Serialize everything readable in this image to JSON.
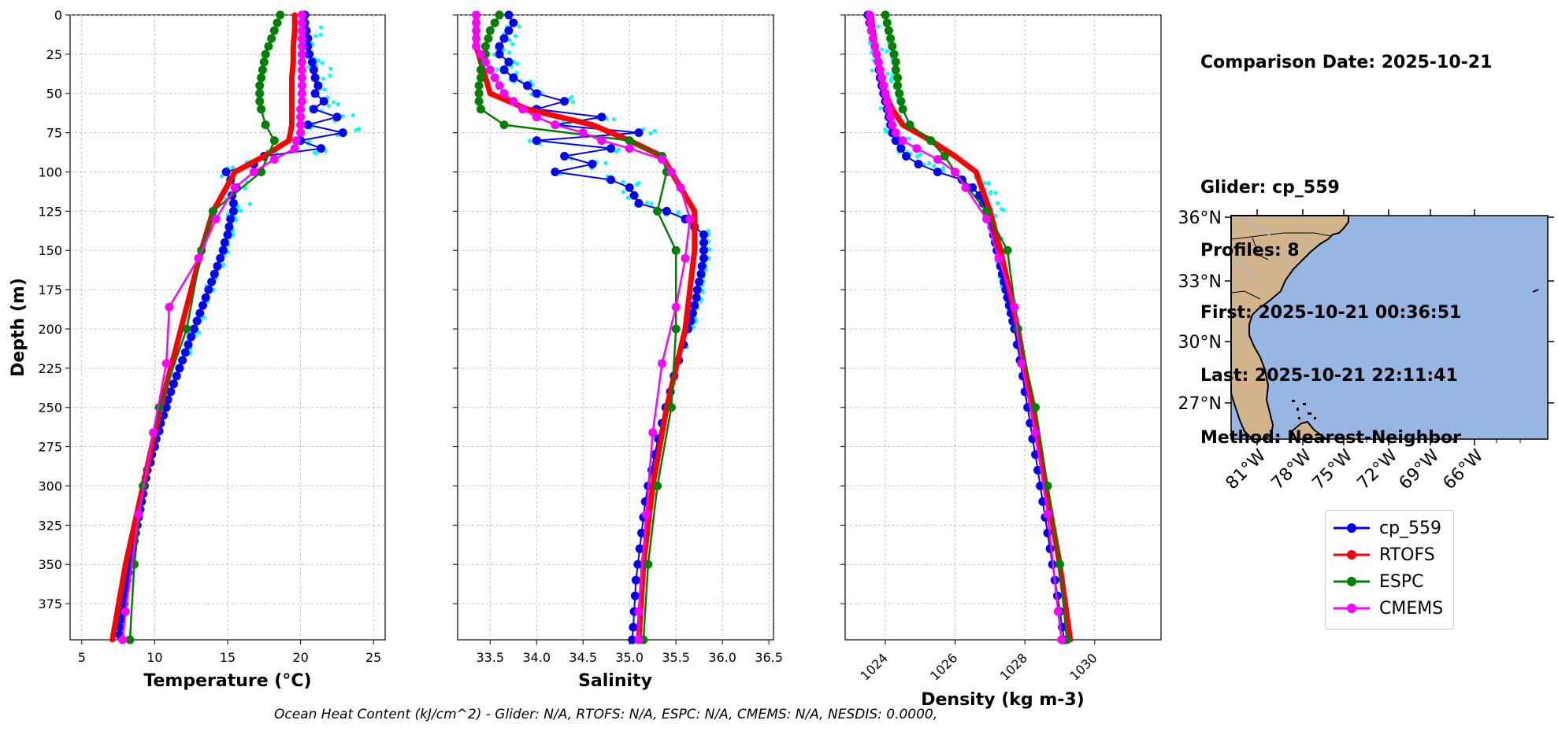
{
  "info": {
    "comparison_date": "Comparison Date: 2025-10-21",
    "glider": "Glider: cp_559",
    "profiles": "Profiles: 8",
    "first": "First: 2025-10-21 00:36:51",
    "last": "Last: 2025-10-21 22:11:41",
    "method": "Method: Nearest-Neighbor"
  },
  "footer_text": "Ocean Heat Content (kJ/cm^2) - Glider: N/A,  RTOFS: N/A,  ESPC: N/A,  CMEMS: N/A,  NESDIS: 0.0000,",
  "colors": {
    "glider": "#0000ff",
    "rtofs": "#ff0000",
    "espc": "#008000",
    "cmems": "#ff00ff",
    "raw": "#00ffff",
    "ocean": "#97b6e1",
    "land": "#d2b48c"
  },
  "legend": [
    {
      "label": "cp_559",
      "color": "#0000ff"
    },
    {
      "label": "RTOFS",
      "color": "#ff0000"
    },
    {
      "label": "ESPC",
      "color": "#008000"
    },
    {
      "label": "CMEMS",
      "color": "#ff00ff"
    }
  ],
  "chart_data": [
    {
      "type": "line",
      "panel": "temperature",
      "xlabel": "Temperature (°C)",
      "ylabel": "Depth (m)",
      "xlim": [
        4.2,
        25.8
      ],
      "ylim": [
        398,
        0
      ],
      "xticks": [
        5,
        10,
        15,
        20,
        25
      ],
      "yticks": [
        0,
        25,
        50,
        75,
        100,
        125,
        150,
        175,
        200,
        225,
        250,
        275,
        300,
        325,
        350,
        375
      ],
      "grid": true,
      "series": [
        {
          "name": "cp_559",
          "depth": [
            0,
            5,
            10,
            15,
            20,
            25,
            30,
            35,
            40,
            45,
            50,
            55,
            60,
            65,
            70,
            75,
            80,
            85,
            90,
            95,
            100,
            105,
            110,
            115,
            120,
            125,
            130,
            135,
            140,
            145,
            150,
            155,
            160,
            165,
            170,
            175,
            180,
            185,
            190,
            195,
            200,
            205,
            210,
            215,
            220,
            225,
            230,
            235,
            240,
            245,
            250,
            255,
            260,
            265,
            270,
            275,
            280,
            285,
            290,
            295,
            300,
            305,
            310,
            315,
            320,
            325,
            330,
            335,
            340,
            345,
            350,
            355,
            360,
            365,
            370,
            375,
            380,
            385,
            390,
            395
          ],
          "values": [
            20.3,
            20.3,
            20.4,
            20.5,
            20.5,
            20.6,
            20.8,
            20.9,
            21.0,
            21.2,
            21.0,
            21.6,
            20.9,
            22.5,
            20.5,
            22.9,
            20.0,
            21.4,
            17.5,
            16.8,
            14.9,
            15.2,
            15.6,
            15.3,
            15.4,
            15.4,
            15.2,
            15.1,
            15.0,
            14.8,
            14.7,
            14.5,
            14.3,
            14.1,
            13.9,
            13.7,
            13.5,
            13.3,
            13.1,
            12.9,
            12.7,
            12.5,
            12.3,
            12.1,
            11.9,
            11.7,
            11.5,
            11.3,
            11.1,
            10.9,
            10.8,
            10.6,
            10.4,
            10.3,
            10.1,
            10.0,
            9.8,
            9.7,
            9.5,
            9.4,
            9.3,
            9.2,
            9.1,
            9.0,
            8.9,
            8.8,
            8.7,
            8.6,
            8.5,
            8.4,
            8.3,
            8.2,
            8.1,
            8.0,
            7.9,
            7.9,
            7.8,
            7.7,
            7.6,
            7.6
          ]
        },
        {
          "name": "RTOFS",
          "depth": [
            0,
            10,
            20,
            30,
            40,
            50,
            60,
            70,
            80,
            90,
            100,
            125,
            150,
            200,
            250,
            300,
            350,
            398
          ],
          "values": [
            19.6,
            19.6,
            19.5,
            19.5,
            19.4,
            19.4,
            19.4,
            19.4,
            19.2,
            17.5,
            15.5,
            14.0,
            13.2,
            11.8,
            10.4,
            9.2,
            8.0,
            7.1
          ]
        },
        {
          "name": "ESPC",
          "depth": [
            0,
            5,
            10,
            15,
            20,
            25,
            30,
            35,
            40,
            45,
            50,
            55,
            60,
            70,
            80,
            100,
            125,
            150,
            200,
            250,
            300,
            350,
            398
          ],
          "values": [
            18.6,
            18.4,
            18.2,
            18.0,
            17.8,
            17.6,
            17.5,
            17.4,
            17.3,
            17.2,
            17.2,
            17.2,
            17.3,
            17.6,
            18.2,
            17.3,
            14.0,
            13.2,
            12.2,
            10.3,
            9.2,
            8.6,
            8.3
          ]
        },
        {
          "name": "CMEMS",
          "depth": [
            0,
            5,
            10,
            15,
            20,
            25,
            30,
            35,
            40,
            45,
            50,
            55,
            60,
            65,
            70,
            75,
            80,
            85,
            92,
            100,
            110,
            130,
            155,
            186,
            222,
            266,
            318,
            380,
            398
          ],
          "values": [
            20.1,
            20.1,
            20.1,
            20.1,
            20.1,
            20.1,
            20.1,
            20.1,
            20.1,
            20.1,
            20.1,
            20.1,
            20.0,
            20.0,
            20.0,
            20.0,
            19.7,
            19.6,
            18.2,
            16.8,
            15.5,
            14.2,
            13.0,
            11.0,
            10.8,
            9.9,
            8.9,
            8.0,
            7.8
          ]
        }
      ]
    },
    {
      "type": "line",
      "panel": "salinity",
      "xlabel": "Salinity",
      "xlim": [
        33.15,
        36.55
      ],
      "ylim": [
        398,
        0
      ],
      "xticks": [
        33.5,
        34.0,
        34.5,
        35.0,
        35.5,
        36.0,
        36.5
      ],
      "grid": true,
      "series": [
        {
          "name": "cp_559",
          "depth": [
            0,
            5,
            10,
            15,
            20,
            25,
            30,
            35,
            40,
            45,
            50,
            55,
            60,
            65,
            70,
            75,
            80,
            85,
            90,
            95,
            100,
            105,
            110,
            115,
            120,
            125,
            130,
            135,
            140,
            145,
            150,
            155,
            160,
            165,
            170,
            175,
            180,
            185,
            190,
            195,
            200,
            210,
            220,
            230,
            240,
            250,
            260,
            270,
            280,
            290,
            300,
            310,
            320,
            330,
            340,
            350,
            360,
            370,
            380,
            390,
            398
          ],
          "values": [
            33.7,
            33.75,
            33.7,
            33.65,
            33.6,
            33.6,
            33.7,
            33.65,
            33.75,
            33.9,
            34.0,
            34.3,
            34.0,
            34.7,
            34.2,
            35.1,
            34.0,
            34.8,
            34.3,
            34.6,
            34.2,
            34.8,
            35.0,
            35.05,
            35.1,
            35.4,
            35.6,
            35.7,
            35.8,
            35.8,
            35.8,
            35.8,
            35.78,
            35.77,
            35.75,
            35.73,
            35.72,
            35.7,
            35.68,
            35.66,
            35.63,
            35.58,
            35.53,
            35.48,
            35.44,
            35.39,
            35.35,
            35.31,
            35.27,
            35.24,
            35.2,
            35.17,
            35.15,
            35.13,
            35.11,
            35.09,
            35.07,
            35.06,
            35.05,
            35.04,
            35.03
          ]
        },
        {
          "name": "RTOFS",
          "depth": [
            0,
            10,
            20,
            30,
            40,
            50,
            60,
            70,
            80,
            90,
            100,
            125,
            150,
            200,
            250,
            300,
            350,
            398
          ],
          "values": [
            33.35,
            33.35,
            33.35,
            33.4,
            33.45,
            33.5,
            33.9,
            34.6,
            35.0,
            35.35,
            35.45,
            35.7,
            35.7,
            35.6,
            35.4,
            35.25,
            35.15,
            35.1
          ]
        },
        {
          "name": "ESPC",
          "depth": [
            0,
            5,
            10,
            15,
            20,
            25,
            30,
            35,
            40,
            45,
            50,
            55,
            60,
            70,
            80,
            90,
            100,
            125,
            150,
            200,
            250,
            300,
            350,
            398
          ],
          "values": [
            33.6,
            33.55,
            33.5,
            33.48,
            33.45,
            33.45,
            33.42,
            33.4,
            33.4,
            33.38,
            33.38,
            33.38,
            33.4,
            33.65,
            35.0,
            35.35,
            35.4,
            35.3,
            35.5,
            35.5,
            35.45,
            35.3,
            35.2,
            35.15
          ]
        },
        {
          "name": "CMEMS",
          "depth": [
            0,
            5,
            10,
            15,
            20,
            25,
            30,
            35,
            40,
            45,
            50,
            55,
            60,
            65,
            70,
            75,
            80,
            85,
            92,
            100,
            110,
            130,
            155,
            186,
            222,
            266,
            318,
            380,
            398
          ],
          "values": [
            33.35,
            33.35,
            33.35,
            33.35,
            33.35,
            33.4,
            33.45,
            33.5,
            33.55,
            33.6,
            33.65,
            33.75,
            33.85,
            34.0,
            34.2,
            34.5,
            34.7,
            35.0,
            35.35,
            35.45,
            35.55,
            35.65,
            35.6,
            35.5,
            35.35,
            35.25,
            35.18,
            35.1,
            35.1
          ]
        }
      ]
    },
    {
      "type": "line",
      "panel": "density",
      "xlabel": "Density (kg m-3)",
      "xlim": [
        1022.85,
        1031.9
      ],
      "ylim": [
        398,
        0
      ],
      "xticks": [
        1024,
        1026,
        1028,
        1030
      ],
      "grid": true,
      "series": [
        {
          "name": "cp_559",
          "depth": [
            0,
            5,
            10,
            15,
            20,
            25,
            30,
            35,
            40,
            45,
            50,
            55,
            60,
            65,
            70,
            75,
            80,
            85,
            90,
            95,
            100,
            105,
            110,
            115,
            120,
            125,
            130,
            135,
            140,
            145,
            150,
            155,
            160,
            165,
            170,
            175,
            180,
            185,
            190,
            195,
            200,
            210,
            220,
            230,
            240,
            250,
            260,
            270,
            280,
            290,
            300,
            310,
            320,
            330,
            340,
            350,
            360,
            370,
            380,
            390,
            398
          ],
          "values": [
            1023.5,
            1023.55,
            1023.6,
            1023.65,
            1023.7,
            1023.75,
            1023.8,
            1023.82,
            1023.85,
            1023.9,
            1023.95,
            1024.0,
            1024.05,
            1024.1,
            1024.15,
            1024.2,
            1024.3,
            1024.45,
            1024.6,
            1024.95,
            1025.5,
            1026.2,
            1026.5,
            1026.7,
            1026.8,
            1026.9,
            1027.0,
            1027.05,
            1027.1,
            1027.15,
            1027.2,
            1027.25,
            1027.3,
            1027.35,
            1027.4,
            1027.45,
            1027.5,
            1027.55,
            1027.6,
            1027.65,
            1027.7,
            1027.78,
            1027.86,
            1027.94,
            1028.0,
            1028.08,
            1028.15,
            1028.22,
            1028.3,
            1028.37,
            1028.44,
            1028.51,
            1028.58,
            1028.65,
            1028.72,
            1028.79,
            1028.86,
            1028.93,
            1029.0,
            1029.07,
            1029.12
          ]
        },
        {
          "name": "RTOFS",
          "depth": [
            0,
            10,
            20,
            30,
            40,
            50,
            60,
            70,
            80,
            90,
            100,
            125,
            150,
            200,
            250,
            300,
            350,
            398
          ],
          "values": [
            1023.6,
            1023.65,
            1023.7,
            1023.8,
            1023.9,
            1024.0,
            1024.2,
            1024.5,
            1025.3,
            1026.0,
            1026.6,
            1027.0,
            1027.3,
            1027.8,
            1028.2,
            1028.6,
            1029.0,
            1029.3
          ]
        },
        {
          "name": "ESPC",
          "depth": [
            0,
            5,
            10,
            15,
            20,
            25,
            30,
            35,
            40,
            45,
            50,
            55,
            60,
            70,
            80,
            90,
            100,
            125,
            150,
            200,
            250,
            300,
            350,
            398
          ],
          "values": [
            1024.0,
            1024.05,
            1024.1,
            1024.15,
            1024.2,
            1024.25,
            1024.3,
            1024.3,
            1024.35,
            1024.35,
            1024.4,
            1024.45,
            1024.5,
            1024.7,
            1025.3,
            1025.7,
            1026.0,
            1026.9,
            1027.5,
            1027.8,
            1028.3,
            1028.65,
            1029.0,
            1029.2
          ]
        },
        {
          "name": "CMEMS",
          "depth": [
            0,
            5,
            10,
            15,
            20,
            25,
            30,
            35,
            40,
            45,
            50,
            55,
            60,
            65,
            70,
            75,
            80,
            85,
            92,
            100,
            110,
            130,
            155,
            186,
            222,
            266,
            318,
            380,
            398
          ],
          "values": [
            1023.55,
            1023.58,
            1023.6,
            1023.65,
            1023.7,
            1023.75,
            1023.8,
            1023.85,
            1023.9,
            1023.95,
            1024.0,
            1024.05,
            1024.1,
            1024.15,
            1024.2,
            1024.3,
            1024.5,
            1024.9,
            1025.5,
            1026.0,
            1026.3,
            1026.9,
            1027.25,
            1027.7,
            1027.9,
            1028.3,
            1028.65,
            1028.95,
            1029.05
          ]
        }
      ]
    }
  ],
  "map": {
    "lat_labels": [
      "36°N",
      "33°N",
      "30°N",
      "27°N"
    ],
    "lon_labels": [
      "81°W",
      "78°W",
      "75°W",
      "72°W",
      "69°W",
      "66°W"
    ]
  }
}
